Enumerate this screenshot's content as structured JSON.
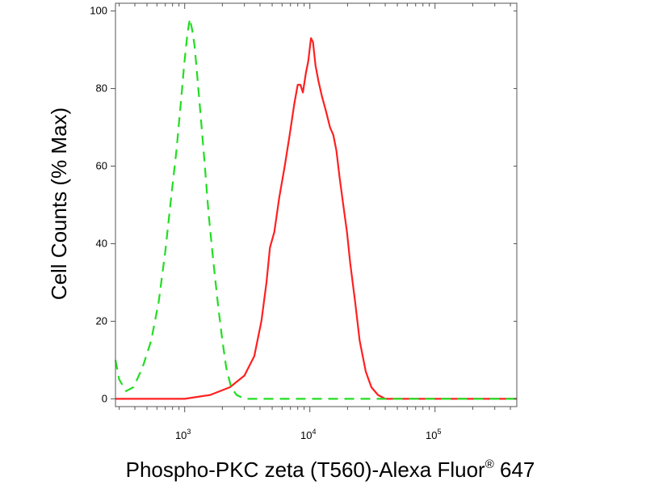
{
  "chart_data": {
    "type": "line",
    "title": "",
    "xlabel": "Phospho-PKC zeta (T560)-Alexa Fluor",
    "xlabel_superscript": "®",
    "xlabel_suffix": " 647",
    "ylabel": "Cell Counts (% Max)",
    "x_scale": "log",
    "xlim": [
      280,
      450000
    ],
    "ylim": [
      -2,
      102
    ],
    "x_major_ticks": [
      {
        "value": 1000,
        "base": "10",
        "exp": "3"
      },
      {
        "value": 10000,
        "base": "10",
        "exp": "4"
      },
      {
        "value": 100000,
        "base": "10",
        "exp": "5"
      }
    ],
    "y_ticks": [
      0,
      20,
      40,
      60,
      80,
      100
    ],
    "grid": false,
    "series": [
      {
        "color": "#ff2020",
        "style": "solid",
        "x": [
          280,
          600,
          1000,
          1600,
          2300,
          3000,
          3600,
          4100,
          4500,
          4800,
          5200,
          5700,
          6300,
          6900,
          7500,
          8000,
          8400,
          8800,
          9300,
          9700,
          10200,
          10600,
          11100,
          11700,
          12500,
          13500,
          14500,
          15400,
          16300,
          17300,
          18500,
          19800,
          21000,
          23000,
          25000,
          28000,
          31000,
          35000,
          40000,
          50000,
          70000,
          120000,
          450000
        ],
        "y": [
          0,
          0,
          0,
          1,
          3,
          6,
          11,
          20,
          30,
          39,
          43,
          52,
          60,
          68,
          76,
          81,
          81,
          79,
          84,
          87,
          93,
          92,
          86,
          82,
          78,
          74,
          70,
          68,
          64,
          57,
          50,
          43,
          35,
          25,
          15,
          7,
          3,
          1,
          0,
          0,
          0,
          0,
          0
        ]
      },
      {
        "color": "#22dd22",
        "style": "dashed",
        "x": [
          280,
          300,
          340,
          390,
          460,
          540,
          620,
          700,
          780,
          860,
          930,
          990,
          1050,
          1100,
          1150,
          1200,
          1270,
          1350,
          1450,
          1550,
          1700,
          1850,
          2000,
          2150,
          2350,
          2600,
          3000,
          4000,
          6000,
          10000,
          30000,
          100000,
          450000
        ],
        "y": [
          10,
          5,
          2,
          3,
          8,
          15,
          25,
          38,
          52,
          64,
          76,
          86,
          94,
          98,
          95,
          91,
          82,
          72,
          60,
          48,
          35,
          24,
          15,
          8,
          3,
          1,
          0,
          0,
          0,
          0,
          0,
          0,
          0
        ]
      }
    ]
  }
}
